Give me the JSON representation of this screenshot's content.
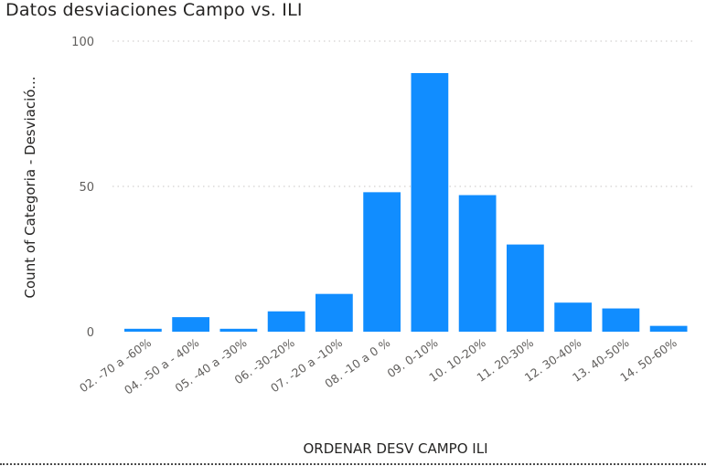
{
  "visual": {
    "title": "Datos desviaciones Campo vs. ILI"
  },
  "colors": {
    "bar": "#118DFF",
    "gridline": "#c8c6c4",
    "text": "#605e5c",
    "title": "#252423"
  },
  "chart_data": {
    "type": "bar",
    "title": "Datos desviaciones Campo vs. ILI",
    "xlabel": "ORDENAR DESV CAMPO ILI",
    "ylabel": "Count of Categoria - Desviació...",
    "categories": [
      "02. -70 a -60%",
      "04. -50 a - 40%",
      "05. -40 a -30%",
      "06. -30-20%",
      "07. -20 a -10%",
      "08. -10 a 0 %",
      "09. 0-10%",
      "10. 10-20%",
      "11. 20-30%",
      "12. 30-40%",
      "13. 40-50%",
      "14. 50-60%"
    ],
    "values": [
      1,
      5,
      1,
      7,
      13,
      48,
      89,
      47,
      30,
      10,
      8,
      2
    ],
    "ylim": [
      0,
      100
    ],
    "yticks": [
      "0",
      "50",
      "100"
    ],
    "grid": true,
    "legend": "none"
  }
}
